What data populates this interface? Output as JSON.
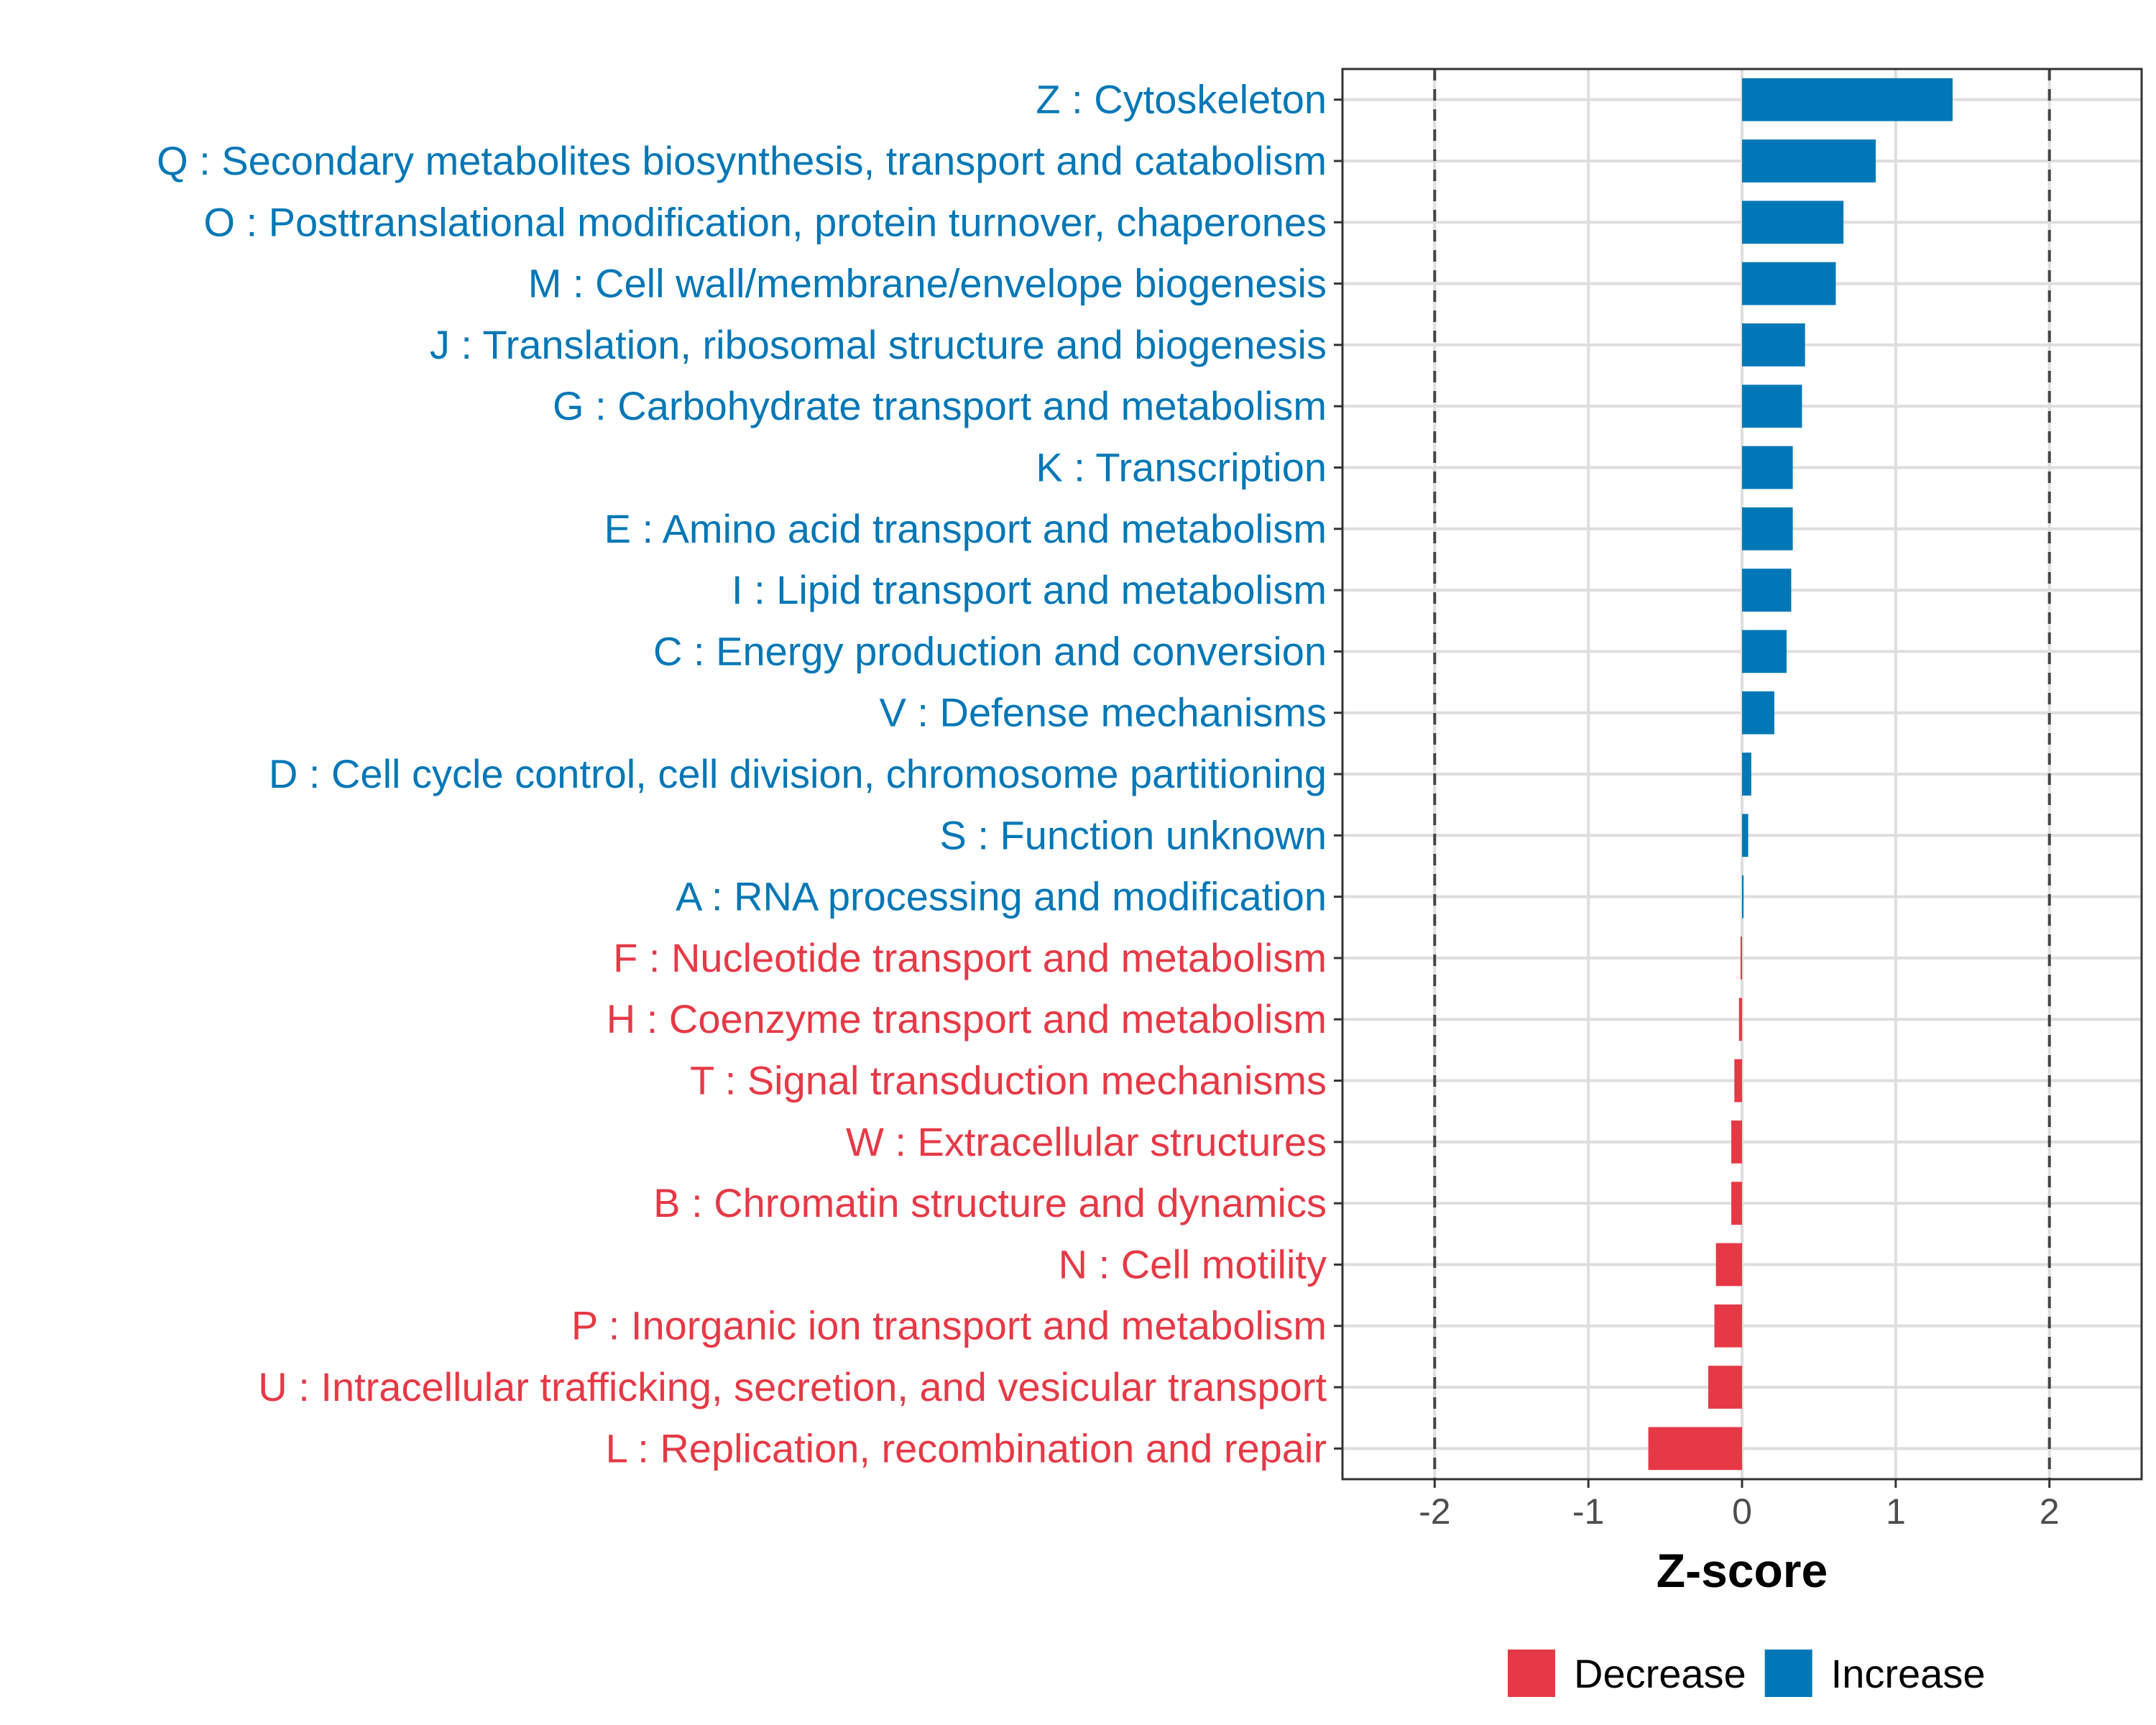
{
  "chart_data": {
    "type": "bar",
    "orientation": "horizontal",
    "xlabel": "Z-score",
    "xlim": [
      -2.6,
      2.6
    ],
    "xticks": [
      -2,
      -1,
      0,
      1,
      2
    ],
    "xtick_labels": [
      "-2",
      "-1",
      "0",
      "1",
      "2"
    ],
    "reference_lines": [
      -2,
      2
    ],
    "grid": true,
    "legend": {
      "placement": "bottom",
      "entries": [
        {
          "name": "Decrease",
          "color": "#e63946"
        },
        {
          "name": "Increase",
          "color": "#0077b6"
        }
      ]
    },
    "colors": {
      "decrease": "#e63946",
      "increase": "#0077b6"
    },
    "categories": [
      "Z : Cytoskeleton",
      "Q : Secondary metabolites biosynthesis, transport and catabolism",
      "O : Posttranslational modification, protein turnover, chaperones",
      "M : Cell wall/membrane/envelope biogenesis",
      "J : Translation, ribosomal structure and biogenesis",
      "G : Carbohydrate transport and metabolism",
      "K : Transcription",
      "E : Amino acid transport and metabolism",
      "I : Lipid transport and metabolism",
      "C : Energy production and conversion",
      "V : Defense mechanisms",
      "D : Cell cycle control, cell division, chromosome partitioning",
      "S : Function unknown",
      "A : RNA processing and modification",
      "F : Nucleotide transport and metabolism",
      "H : Coenzyme transport and metabolism",
      "T : Signal transduction mechanisms",
      "W : Extracellular structures",
      "B : Chromatin structure and dynamics",
      "N : Cell motility",
      "P : Inorganic ion transport and metabolism",
      "U : Intracellular trafficking, secretion, and vesicular transport",
      "L : Replication, recombination and repair"
    ],
    "values": [
      1.37,
      0.87,
      0.66,
      0.61,
      0.41,
      0.39,
      0.33,
      0.33,
      0.32,
      0.29,
      0.21,
      0.06,
      0.04,
      0.01,
      -0.01,
      -0.02,
      -0.05,
      -0.07,
      -0.07,
      -0.17,
      -0.18,
      -0.22,
      -0.61
    ],
    "direction": [
      "Increase",
      "Increase",
      "Increase",
      "Increase",
      "Increase",
      "Increase",
      "Increase",
      "Increase",
      "Increase",
      "Increase",
      "Increase",
      "Increase",
      "Increase",
      "Increase",
      "Decrease",
      "Decrease",
      "Decrease",
      "Decrease",
      "Decrease",
      "Decrease",
      "Decrease",
      "Decrease",
      "Decrease"
    ]
  }
}
